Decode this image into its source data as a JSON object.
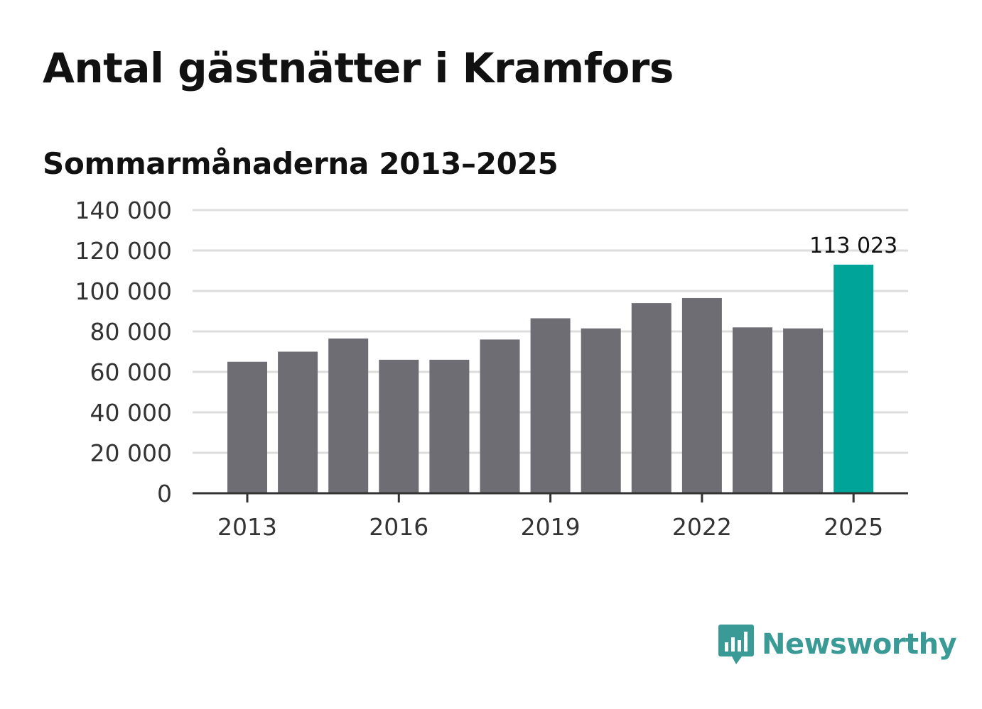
{
  "title": "Antal gästnätter i Kramfors",
  "subtitle": "Sommarmånaderna 2013–2025",
  "colors": {
    "bar": "#6e6d73",
    "highlight": "#00a499",
    "grid": "#dddddd",
    "axis": "#333333",
    "brand": "#3a9a95"
  },
  "chart_data": {
    "type": "bar",
    "categories": [
      "2013",
      "2014",
      "2015",
      "2016",
      "2017",
      "2018",
      "2019",
      "2020",
      "2021",
      "2022",
      "2023",
      "2024",
      "2025"
    ],
    "values": [
      65000,
      70000,
      76500,
      66000,
      66000,
      76000,
      86500,
      81500,
      94000,
      96500,
      82000,
      81500,
      113023
    ],
    "ylim": [
      0,
      140000
    ],
    "yticks": [
      0,
      20000,
      40000,
      60000,
      80000,
      100000,
      120000,
      140000
    ],
    "ytick_labels": [
      "0",
      "20 000",
      "40 000",
      "60 000",
      "80 000",
      "100 000",
      "120 000",
      "140 000"
    ],
    "xtick_labels": [
      "2013",
      "2016",
      "2019",
      "2022",
      "2025"
    ],
    "highlight_category": "2025",
    "annotation": "113 023",
    "grid": true
  },
  "brand": {
    "name": "Newsworthy",
    "icon": "bar-chart-speech-bubble-icon"
  }
}
